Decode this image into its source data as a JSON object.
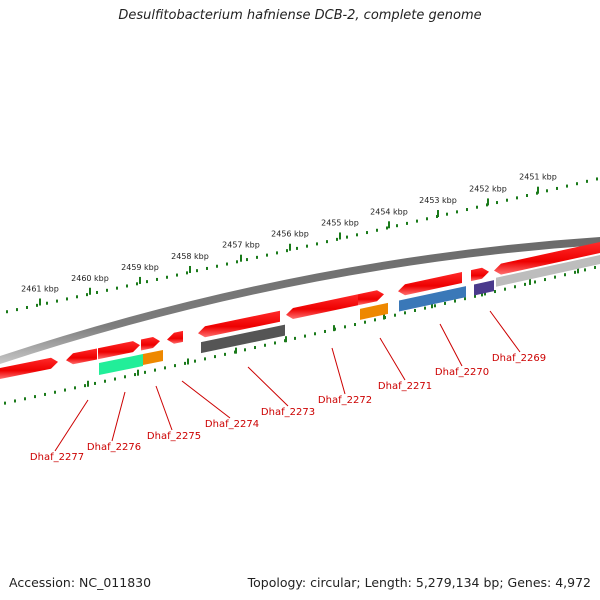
{
  "title": "Desulfitobacterium hafniense DCB-2, complete genome",
  "footer": {
    "accession": "Accession: NC_011830",
    "topology": "Topology: circular; Length: 5,279,134 bp; Genes: 4,972"
  },
  "scale_ticks": [
    "2451 kbp",
    "2452 kbp",
    "2453 kbp",
    "2454 kbp",
    "2455 kbp",
    "2456 kbp",
    "2457 kbp",
    "2458 kbp",
    "2459 kbp",
    "2460 kbp",
    "2461 kbp"
  ],
  "gene_labels": [
    "Dhaf_2269",
    "Dhaf_2270",
    "Dhaf_2271",
    "Dhaf_2272",
    "Dhaf_2273",
    "Dhaf_2274",
    "Dhaf_2275",
    "Dhaf_2276",
    "Dhaf_2277"
  ],
  "colors": {
    "gene": "#ff0000",
    "label": "#cc0000",
    "tick": "#1a7a1a",
    "backbone": "#808080",
    "rna_cyan": "#22ee99",
    "orange": "#ee8800",
    "blue": "#3a78b8",
    "purple": "#4a3a8c",
    "dark_gray": "#555555",
    "light_gray": "#bdbdbd"
  }
}
